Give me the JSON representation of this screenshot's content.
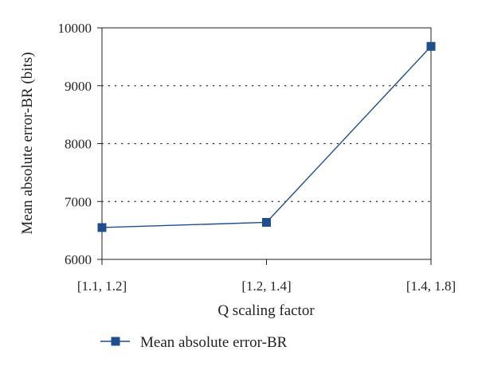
{
  "chart_data": {
    "type": "line",
    "categories": [
      "[1.1, 1.2]",
      "[1.2, 1.4]",
      "[1.4, 1.8]"
    ],
    "series": [
      {
        "name": "Mean absolute error-BR",
        "values": [
          6550,
          6640,
          9680
        ]
      }
    ],
    "xlabel": "Q scaling factor",
    "ylabel": "Mean absolute error-BR (bits)",
    "ylim": [
      6000,
      10000
    ],
    "yticks": [
      6000,
      7000,
      8000,
      9000,
      10000
    ],
    "grid": "horizontal dotted",
    "legend": "bottom",
    "colors": {
      "series": "#1f4e8c",
      "axis": "#231f20",
      "grid": "#231f20"
    }
  }
}
